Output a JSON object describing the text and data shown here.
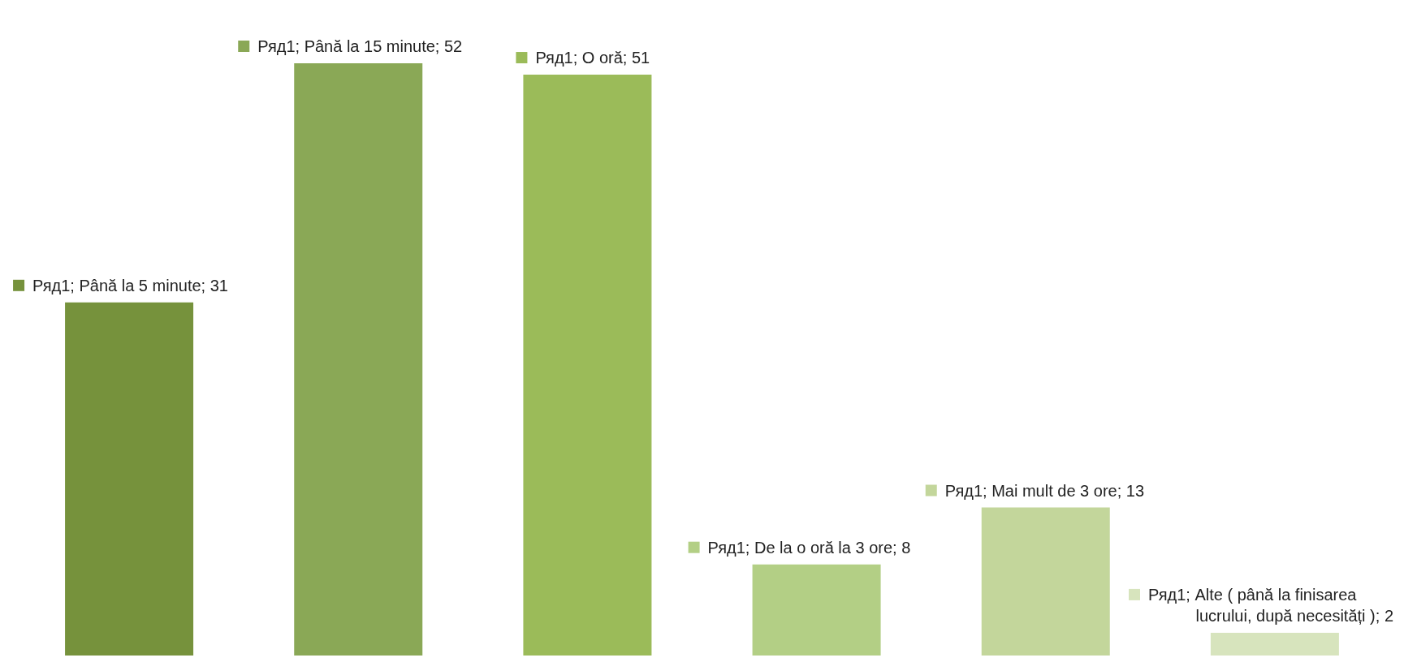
{
  "chart_data": {
    "type": "bar",
    "categories": [
      null,
      null,
      null,
      null,
      null,
      null
    ],
    "series": [
      {
        "values": [
          31,
          52,
          51,
          8,
          13,
          2
        ],
        "colors": [
          "#76923c",
          "#8aa856",
          "#9bbb59",
          "#b3cf85",
          "#c3d69b",
          "#d7e4bd"
        ],
        "value_labels": [
          "Ряд1; Până la 5 minute; 31",
          "Ряд1; Până la 15 minute; 52",
          "Ряд1; O oră; 51",
          "Ряд1; De la o oră la 3 ore; 8",
          "Ряд1; Mai mult de 3 ore; 13",
          "Ряд1; Alte ( până la finisarea lucrului, după necesități ); 2"
        ]
      }
    ],
    "tick_labels": false
  }
}
